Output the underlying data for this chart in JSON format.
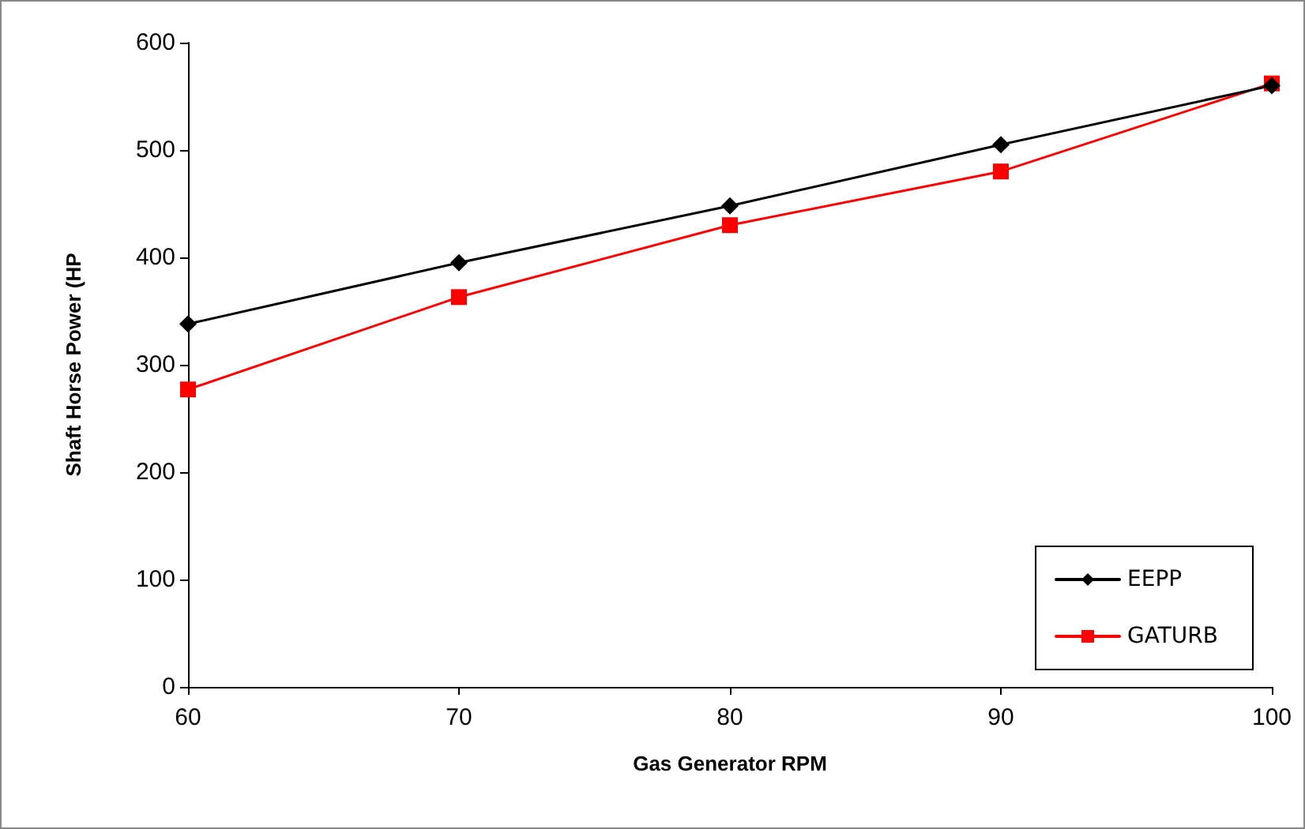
{
  "chart_data": {
    "type": "line",
    "xlabel": "Gas Generator RPM",
    "ylabel": "Shaft Horse Power (HP",
    "x": [
      60,
      70,
      80,
      90,
      100
    ],
    "series": [
      {
        "name": "EEPP",
        "color": "#000000",
        "marker": "diamond",
        "values": [
          338,
          395,
          448,
          505,
          560
        ]
      },
      {
        "name": "GATURB",
        "color": "#ff0000",
        "marker": "square",
        "values": [
          277,
          363,
          430,
          480,
          562
        ]
      }
    ],
    "xlim": [
      60,
      100
    ],
    "xticks": [
      60,
      70,
      80,
      90,
      100
    ],
    "ylim": [
      0,
      600
    ],
    "yticks": [
      0,
      100,
      200,
      300,
      400,
      500,
      600
    ],
    "grid": false,
    "legend": "bottom right",
    "line_style": "solid"
  }
}
